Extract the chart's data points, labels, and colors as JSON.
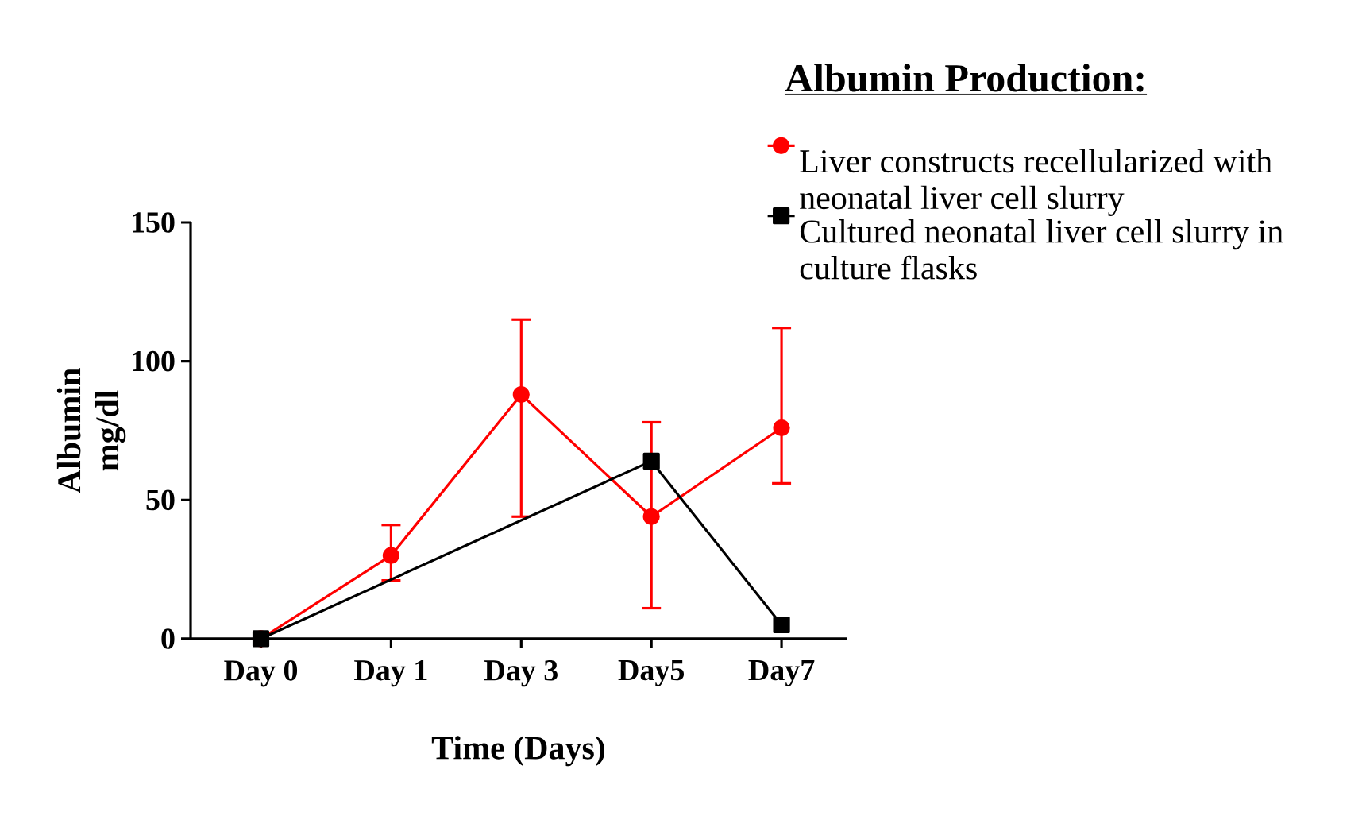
{
  "chart_data": {
    "type": "line",
    "legend_title": "Albumin Production:",
    "xlabel": "Time (Days)",
    "ylabel": "Albumin mg/dl",
    "categories": [
      "Day 0",
      "Day 1",
      "Day 3",
      "Day5",
      "Day7"
    ],
    "series": [
      {
        "name": "Liver constructs recellularized with neonatal liver cell slurry",
        "color": "#ff0000",
        "marker": "circle",
        "values": [
          0,
          30,
          88,
          44,
          76
        ],
        "errors": [
          null,
          [
            21,
            41
          ],
          [
            44,
            115
          ],
          [
            11,
            78
          ],
          [
            56,
            112
          ]
        ]
      },
      {
        "name": "Cultured neonatal liver cell slurry in culture flasks",
        "color": "#000000",
        "marker": "square",
        "values": [
          0,
          null,
          null,
          64,
          5
        ]
      }
    ],
    "ylim": [
      0,
      150
    ],
    "yticks": [
      0,
      50,
      100,
      150
    ],
    "grid": false,
    "legend": "top right",
    "line_style": "solid"
  }
}
